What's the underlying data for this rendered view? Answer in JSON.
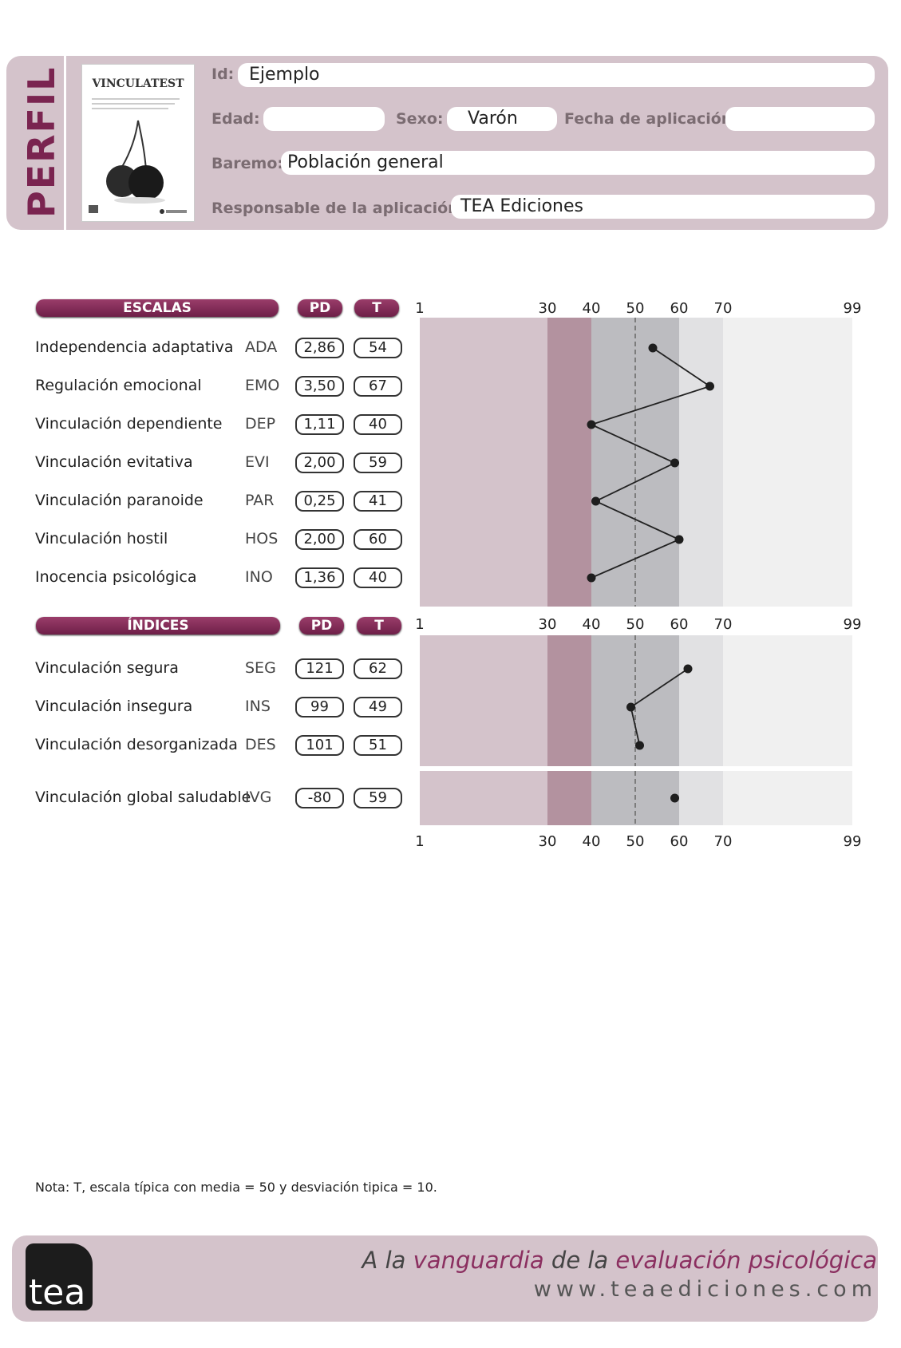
{
  "header": {
    "side_title": "PERFIL",
    "cover_title": "VINCULATEST",
    "id_label": "Id:",
    "id_value": "Ejemplo",
    "edad_label": "Edad:",
    "edad_value": "",
    "sexo_label": "Sexo:",
    "sexo_value": "Varón",
    "fecha_label": "Fecha de aplicación:",
    "fecha_value": "",
    "baremo_label": "Baremo:",
    "baremo_value": "Población general",
    "responsable_label": "Responsable de la aplicación:",
    "responsable_value": "TEA Ediciones"
  },
  "escalas": {
    "title": "ESCALAS",
    "pd_label": "PD",
    "t_label": "T",
    "rows": [
      {
        "name": "Independencia adaptativa",
        "code": "ADA",
        "pd": "2,86",
        "t": "54"
      },
      {
        "name": "Regulación emocional",
        "code": "EMO",
        "pd": "3,50",
        "t": "67"
      },
      {
        "name": "Vinculación dependiente",
        "code": "DEP",
        "pd": "1,11",
        "t": "40"
      },
      {
        "name": "Vinculación evitativa",
        "code": "EVI",
        "pd": "2,00",
        "t": "59"
      },
      {
        "name": "Vinculación paranoide",
        "code": "PAR",
        "pd": "0,25",
        "t": "41"
      },
      {
        "name": "Vinculación hostil",
        "code": "HOS",
        "pd": "2,00",
        "t": "60"
      },
      {
        "name": "Inocencia psicológica",
        "code": "INO",
        "pd": "1,36",
        "t": "40"
      }
    ]
  },
  "indices": {
    "title": "ÍNDICES",
    "pd_label": "PD",
    "t_label": "T",
    "rows": [
      {
        "name": "Vinculación segura",
        "code": "SEG",
        "pd": "121",
        "t": "62"
      },
      {
        "name": "Vinculación insegura",
        "code": "INS",
        "pd": "99",
        "t": "49"
      },
      {
        "name": "Vinculación desorganizada",
        "code": "DES",
        "pd": "101",
        "t": "51"
      }
    ],
    "global": {
      "name": "Vinculación global saludable",
      "code": "IVG",
      "pd": "-80",
      "t": "59"
    }
  },
  "chart_data": {
    "type": "line",
    "x_axis_ticks": [
      1,
      30,
      40,
      50,
      60,
      70,
      99
    ],
    "xlim": [
      1,
      99
    ],
    "reference_line": 50,
    "bands": [
      {
        "from": 1,
        "to": 30,
        "color": "#d4c3cb"
      },
      {
        "from": 30,
        "to": 40,
        "color": "#b3929f"
      },
      {
        "from": 40,
        "to": 60,
        "color": "#bcbcc0"
      },
      {
        "from": 60,
        "to": 70,
        "color": "#e1e1e3"
      },
      {
        "from": 70,
        "to": 99,
        "color": "#f0f0f0"
      }
    ],
    "series": [
      {
        "categories": [
          "ADA",
          "EMO",
          "DEP",
          "EVI",
          "PAR",
          "HOS",
          "INO"
        ],
        "values": [
          54,
          67,
          40,
          59,
          41,
          60,
          40
        ]
      },
      {
        "categories": [
          "SEG",
          "INS",
          "DES"
        ],
        "values": [
          62,
          49,
          51
        ]
      },
      {
        "categories": [
          "IVG"
        ],
        "values": [
          59
        ]
      }
    ]
  },
  "nota": "Nota: T, escala típica con media = 50 y desviación tipica = 10.",
  "footer": {
    "logo_text": "tea",
    "tagline_1": "A la ",
    "tagline_2": "vanguardia",
    "tagline_3": " de la ",
    "tagline_4": "evaluación psicológica",
    "website": "www.teaediciones.com"
  },
  "colors": {
    "accent": "#7a2450",
    "panel": "#d4c3cb"
  }
}
